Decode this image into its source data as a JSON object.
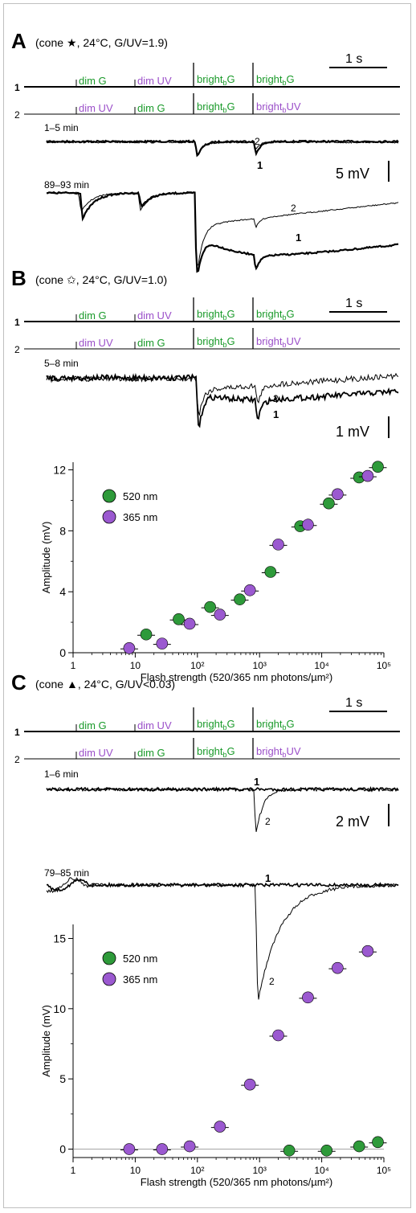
{
  "colors": {
    "green": "#1a9a2a",
    "purple": "#9b4fc9",
    "ink": "#000000",
    "green_marker": "#2e9a3a",
    "purple_marker": "#9b59d0"
  },
  "panels": [
    {
      "letter": "A",
      "subtitle_pre": "(cone",
      "symbol": "★",
      "subtitle_post": ", 24°C, G/UV=1.9)",
      "row1": {
        "num": "1",
        "label1": "dim G",
        "label2": "dim UV",
        "label3_main": "bright",
        "label3_sub": "b",
        "label3_end": "G",
        "label4_main": "bright",
        "label4_sub": "b",
        "label4_end": "G"
      },
      "row2": {
        "num": "2",
        "label1": "dim UV",
        "label2": "dim G",
        "label3_main": "bright",
        "label3_sub": "b",
        "label3_end": "G",
        "label4_main": "bright",
        "label4_sub": "b",
        "label4_end": "UV"
      },
      "time_scale": "1 s",
      "trace_set1": "1–5 min",
      "trace_set2": "89–93 min",
      "voltage_scale": "5 mV",
      "trace_label_1": "1",
      "trace_label_2": "2",
      "trace_label_1b": "1",
      "trace_label_2b": "2"
    },
    {
      "letter": "B",
      "subtitle_pre": "(cone",
      "symbol": "✩",
      "subtitle_post": ", 24°C, G/UV=1.0)",
      "row1": {
        "num": "1",
        "label1": "dim G",
        "label2": "dim UV",
        "label3_main": "bright",
        "label3_sub": "b",
        "label3_end": "G",
        "label4_main": "bright",
        "label4_sub": "b",
        "label4_end": "G"
      },
      "row2": {
        "num": "2",
        "label1": "dim UV",
        "label2": "dim G",
        "label3_main": "bright",
        "label3_sub": "b",
        "label3_end": "G",
        "label4_main": "bright",
        "label4_sub": "b",
        "label4_end": "UV"
      },
      "time_scale": "1 s",
      "trace_set1": "5–8 min",
      "voltage_scale": "1 mV",
      "trace_label_1": "1",
      "trace_label_2": "2"
    },
    {
      "letter": "C",
      "subtitle_pre": "(cone",
      "symbol": "▲",
      "subtitle_post": ", 24°C, G/UV<0.03)",
      "row1": {
        "num": "1",
        "label1": "dim G",
        "label2": "dim UV",
        "label3_main": "bright",
        "label3_sub": "b",
        "label3_end": "G",
        "label4_main": "bright",
        "label4_sub": "b",
        "label4_end": "G"
      },
      "row2": {
        "num": "2",
        "label1": "dim UV",
        "label2": "dim G",
        "label3_main": "bright",
        "label3_sub": "b",
        "label3_end": "G",
        "label4_main": "bright",
        "label4_sub": "b",
        "label4_end": "UV"
      },
      "time_scale": "1 s",
      "trace_set1": "1–6 min",
      "trace_set2": "79–85 min",
      "voltage_scale": "2 mV",
      "trace_label_1": "1",
      "trace_label_2": "2",
      "trace_label_1b": "1",
      "trace_label_2b": "2"
    }
  ],
  "chart_data": [
    {
      "type": "scatter",
      "panel": "B",
      "xlabel": "Flash strength (520/365 nm photons/µm²)",
      "ylabel": "Amplitude (mV)",
      "xscale": "log",
      "xlim": [
        1,
        100000
      ],
      "ylim": [
        0,
        12.5
      ],
      "xticks": [
        "1",
        "10",
        "10²",
        "10³",
        "10⁴",
        "10⁵"
      ],
      "yticks": [
        0,
        4,
        8,
        12
      ],
      "legend_position": "top-left",
      "series": [
        {
          "name": "520 nm",
          "color": "green",
          "x": [
            15,
            50,
            160,
            480,
            1500,
            4500,
            13000,
            40000,
            80000
          ],
          "y": [
            1.2,
            2.2,
            3.0,
            3.5,
            5.3,
            8.3,
            9.8,
            11.5,
            12.2
          ]
        },
        {
          "name": "365 nm",
          "color": "purple",
          "x": [
            8,
            27,
            75,
            230,
            700,
            2000,
            6000,
            18000,
            55000
          ],
          "y": [
            0.3,
            0.6,
            1.9,
            2.5,
            4.1,
            7.1,
            8.4,
            10.4,
            11.6
          ]
        }
      ]
    },
    {
      "type": "scatter",
      "panel": "C",
      "xlabel": "Flash strength (520/365 nm photons/µm²)",
      "ylabel": "Amplitude (mV)",
      "xscale": "log",
      "xlim": [
        1,
        100000
      ],
      "ylim": [
        -0.6,
        16
      ],
      "xticks": [
        "1",
        "10",
        "10²",
        "10³",
        "10⁴",
        "10⁵"
      ],
      "yticks": [
        0,
        5,
        10,
        15
      ],
      "legend_position": "top-left",
      "series": [
        {
          "name": "520 nm",
          "color": "green",
          "x": [
            3000,
            12000,
            40000,
            80000
          ],
          "y": [
            -0.1,
            -0.1,
            0.2,
            0.5
          ]
        },
        {
          "name": "365 nm",
          "color": "purple",
          "x": [
            8,
            27,
            75,
            230,
            700,
            2000,
            6000,
            18000,
            55000
          ],
          "y": [
            0.0,
            0.0,
            0.2,
            1.6,
            4.6,
            8.1,
            10.8,
            12.9,
            14.1
          ]
        }
      ]
    }
  ]
}
